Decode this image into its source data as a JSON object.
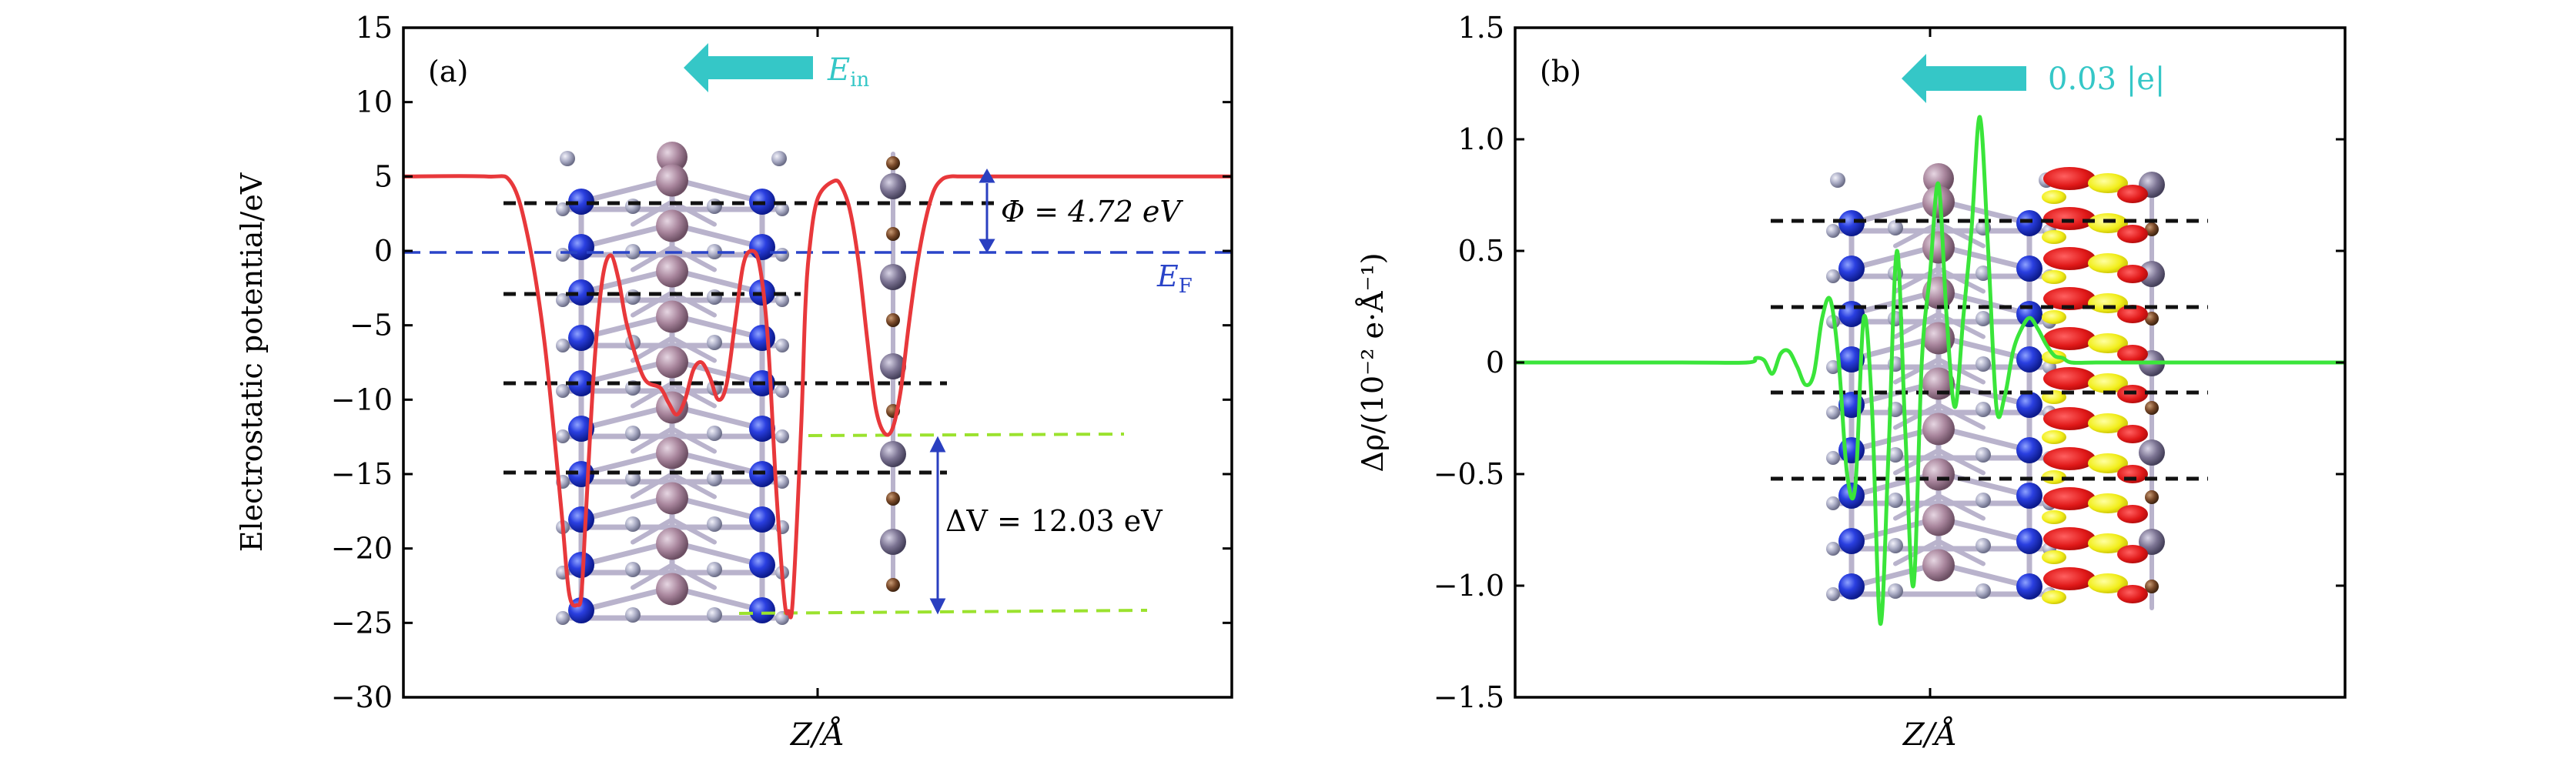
{
  "chart_data": [
    {
      "type": "line",
      "panel_label": "(a)",
      "xlabel": "Z/Å",
      "ylabel": "Electrostatic potential/eV",
      "ylim": [
        -30,
        15
      ],
      "yticks": [
        15,
        10,
        5,
        0,
        -5,
        -10,
        -15,
        -20,
        -25,
        -30
      ],
      "x_range": [
        0,
        100
      ],
      "series": [
        {
          "color": "#e8383b",
          "x": [
            0,
            10,
            13,
            15,
            17,
            19,
            20,
            21,
            21.5,
            22,
            23,
            24,
            25,
            26,
            27,
            29,
            31,
            32,
            33,
            34,
            35,
            36,
            37,
            38,
            39,
            40,
            41,
            42,
            43,
            44,
            45,
            46,
            46.5,
            47,
            48,
            48.5,
            49,
            50,
            52,
            53,
            54,
            55,
            56,
            57,
            58,
            59,
            60,
            61,
            62,
            63,
            64,
            65,
            66,
            67,
            68,
            70,
            75,
            100
          ],
          "y": [
            5.0,
            5.0,
            4.6,
            1.0,
            -6.0,
            -17.0,
            -23.0,
            -23.8,
            -23.0,
            -18.0,
            -8.0,
            -2.0,
            -0.3,
            -2.0,
            -5.0,
            -8.5,
            -9.2,
            -10.2,
            -11.0,
            -10.0,
            -8.0,
            -7.5,
            -8.5,
            -10.0,
            -9.0,
            -5.0,
            -1.0,
            0.0,
            -1.0,
            -6.0,
            -16.0,
            -23.5,
            -24.2,
            -23.5,
            -12.0,
            -4.0,
            0.0,
            3.5,
            4.7,
            4.2,
            2.5,
            -1.0,
            -6.0,
            -10.5,
            -12.2,
            -12.0,
            -9.5,
            -5.0,
            -1.0,
            2.0,
            4.0,
            4.8,
            5.0,
            5.0,
            5.0,
            5.0,
            5.0,
            5.0
          ]
        }
      ],
      "reference_lines": [
        {
          "label": "E_F",
          "y": 0,
          "color": "#2a44c8",
          "style": "dashed"
        }
      ],
      "arrow_label": "E",
      "arrow_label_sub": "in",
      "annotations": [
        {
          "text": "Φ = 4.72 eV",
          "from_y": 5.0,
          "to_y": 0
        },
        {
          "text": "ΔV = 12.03 eV",
          "from_y": -12.3,
          "to_y": -24.2
        }
      ],
      "grid": false
    },
    {
      "type": "line",
      "panel_label": "(b)",
      "xlabel": "Z/Å",
      "ylabel": "Δρ/(10⁻² e·Å⁻¹)",
      "ylim": [
        -1.5,
        1.5
      ],
      "yticks": [
        1.5,
        1.0,
        0.5,
        0,
        -0.5,
        -1.0,
        -1.5
      ],
      "ytick_labels": [
        "1.5",
        "1.0",
        "0.5",
        "0",
        "−0.5",
        "−1.0",
        "−1.5"
      ],
      "x_range": [
        0,
        100
      ],
      "arrow_label": "0.03 |e|",
      "series": [
        {
          "color": "#3ae53a",
          "x": [
            0,
            20,
            28,
            29,
            30,
            31,
            32,
            33,
            34,
            35,
            36,
            37,
            38,
            39,
            40,
            41,
            42,
            43,
            44,
            45,
            46,
            47,
            48,
            49,
            50,
            51,
            52,
            53,
            54,
            55,
            56,
            57,
            58,
            59,
            60,
            61,
            62,
            63,
            64,
            65,
            66,
            67,
            70,
            75,
            100
          ],
          "y": [
            0,
            0,
            0,
            0.02,
            0.01,
            -0.05,
            0.04,
            0.05,
            -0.02,
            -0.1,
            -0.05,
            0.2,
            0.28,
            0.0,
            -0.5,
            -0.55,
            0.2,
            -0.2,
            -1.17,
            -0.4,
            0.5,
            -0.3,
            -1.0,
            0.0,
            0.4,
            0.8,
            0.2,
            -0.2,
            0.2,
            0.6,
            1.1,
            0.5,
            -0.2,
            -0.15,
            0.05,
            0.15,
            0.2,
            0.15,
            0.08,
            0.03,
            0.02,
            0.0,
            0.0,
            0.0,
            0.0
          ]
        }
      ],
      "grid": false
    }
  ]
}
